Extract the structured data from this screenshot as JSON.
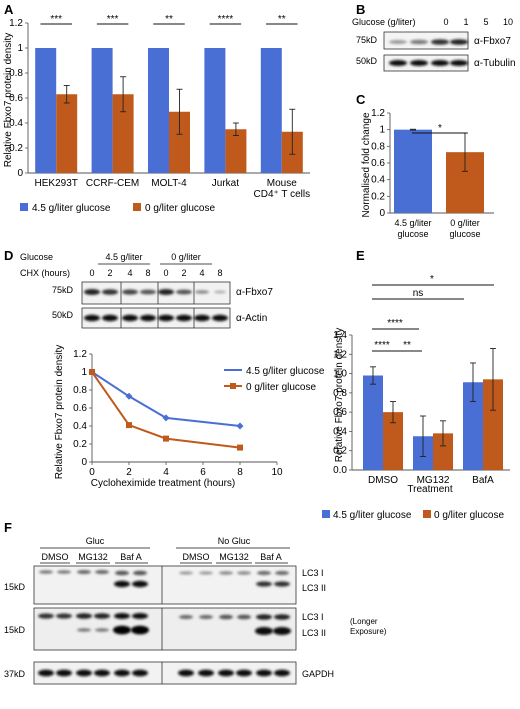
{
  "colors": {
    "high": "#4a6fd4",
    "low": "#c05a1c",
    "err": "#222222"
  },
  "panelA": {
    "label": "A",
    "ylabel": "Relative Fbxo7 protein density",
    "legend_high": "4.5 g/liter glucose",
    "legend_low": "0 g/liter glucose",
    "xlabels": [
      {
        "line1": "HEK293T",
        "line2": ""
      },
      {
        "line1": "CCRF-CEM",
        "line2": ""
      },
      {
        "line1": "MOLT-4",
        "line2": ""
      },
      {
        "line1": "Jurkat",
        "line2": ""
      },
      {
        "line1": "Mouse",
        "line2": "CD4⁺ T cells"
      }
    ],
    "sig": [
      "***",
      "***",
      "**",
      "****",
      "**"
    ]
  },
  "panelB": {
    "label": "B",
    "header": "Glucose (g/liter)",
    "lanes": [
      "0",
      "1",
      "5",
      "10"
    ],
    "mw_top": "75kD",
    "mw_bottom": "50kD",
    "label_top": "α-Fbxo7",
    "label_bottom": "α-Tubulin"
  },
  "panelC": {
    "label": "C",
    "ylabel": "Normalised fold change",
    "xlabels": [
      {
        "line1": "4.5 g/liter",
        "line2": "glucose"
      },
      {
        "line1": "0 g/liter",
        "line2": "glucose"
      }
    ],
    "sig": "*"
  },
  "panelD": {
    "label": "D",
    "glucose_label": "Glucose",
    "group_high": "4.5 g/liter",
    "group_low": "0 g/liter",
    "chx_label": "CHX (hours)",
    "lanes": [
      "0",
      "2",
      "4",
      "8",
      "0",
      "2",
      "4",
      "8"
    ],
    "mw_top": "75kD",
    "mw_bottom": "50kD",
    "label_top": "α-Fbxo7",
    "label_bottom": "α-Actin",
    "ylabel": "Relative Fbxo7 protein density",
    "xlabel": "Cycloheximide treatment (hours)",
    "legend_high": "4.5 g/liter glucose",
    "legend_low": "0 g/liter glucose"
  },
  "panelE": {
    "label": "E",
    "ylabel": "Relative Fbxo7 protein density",
    "xlabel": "Treatment",
    "sig_ns": "ns",
    "sig_star": "*",
    "sig_4a": "****",
    "sig_4b": "****",
    "sig_2": "**",
    "legend_high": "4.5 g/liter glucose",
    "legend_low": "0 g/liter glucose"
  },
  "panelF": {
    "label": "F",
    "group_gluc": "Gluc",
    "group_nogluc": "No Gluc",
    "treatments": [
      "DMSO",
      "MG132",
      "Baf A",
      "DMSO",
      "MG132",
      "Baf A"
    ],
    "mw1": "15kD",
    "mw2": "15kD",
    "mw3": "37kD",
    "lc3i": "LC3 I",
    "lc3ii": "LC3 II",
    "longer_line1": "(Longer",
    "longer_line2": "Exposure)",
    "gapdh": "GAPDH"
  },
  "chart_data": [
    {
      "type": "bar",
      "panel": "A",
      "categories": [
        "HEK293T",
        "CCRF-CEM",
        "MOLT-4",
        "Jurkat",
        "Mouse CD4⁺ T cells"
      ],
      "series": [
        {
          "name": "4.5 g/liter glucose",
          "values": [
            1,
            1,
            1,
            1,
            1
          ],
          "errors": [
            0,
            0,
            0,
            0,
            0
          ]
        },
        {
          "name": "0 g/liter glucose",
          "values": [
            0.63,
            0.63,
            0.49,
            0.35,
            0.33
          ],
          "errors": [
            0.07,
            0.14,
            0.18,
            0.05,
            0.18
          ]
        }
      ],
      "ylim": [
        0,
        1.2
      ],
      "yticks": [
        "0",
        "0.2",
        "0.4",
        "0.6",
        "0.8",
        "1",
        "1.2"
      ],
      "grid": false,
      "legend": "bottom"
    },
    {
      "type": "bar",
      "panel": "C",
      "categories": [
        "4.5 g/liter glucose",
        "0 g/liter glucose"
      ],
      "values": [
        1.0,
        0.73
      ],
      "errors": [
        0.005,
        0.23
      ],
      "ylim": [
        0,
        1.2
      ],
      "yticks": [
        "0",
        "0.2",
        "0.4",
        "0.6",
        "0.8",
        "1",
        "1.2"
      ],
      "grid": false
    },
    {
      "type": "line",
      "panel": "D",
      "x": [
        0,
        2,
        4,
        8
      ],
      "series": [
        {
          "name": "4.5 g/liter glucose",
          "values": [
            1.0,
            0.73,
            0.49,
            0.4
          ]
        },
        {
          "name": "0 g/liter glucose",
          "values": [
            1.0,
            0.41,
            0.26,
            0.16
          ]
        }
      ],
      "xlim": [
        0,
        10
      ],
      "xticks": [
        "0",
        "2",
        "4",
        "6",
        "8",
        "10"
      ],
      "ylim": [
        0,
        1.2
      ],
      "yticks": [
        "0",
        "0.2",
        "0.4",
        "0.6",
        "0.8",
        "1",
        "1.2"
      ],
      "grid": false,
      "legend": "right"
    },
    {
      "type": "bar",
      "panel": "E",
      "categories": [
        "DMSO",
        "MG132",
        "BafA"
      ],
      "series": [
        {
          "name": "4.5 g/liter glucose",
          "values": [
            0.98,
            0.35,
            0.91
          ],
          "errors": [
            0.09,
            0.21,
            0.2
          ]
        },
        {
          "name": "0 g/liter glucose",
          "values": [
            0.6,
            0.38,
            0.94
          ],
          "errors": [
            0.11,
            0.13,
            0.32
          ]
        }
      ],
      "ylim": [
        0,
        1.4
      ],
      "yticks": [
        "0.0",
        "0.2",
        "0.4",
        "0.6",
        "0.8",
        "1.0",
        "1.2",
        "1.4"
      ],
      "grid": false,
      "legend": "bottom"
    }
  ]
}
